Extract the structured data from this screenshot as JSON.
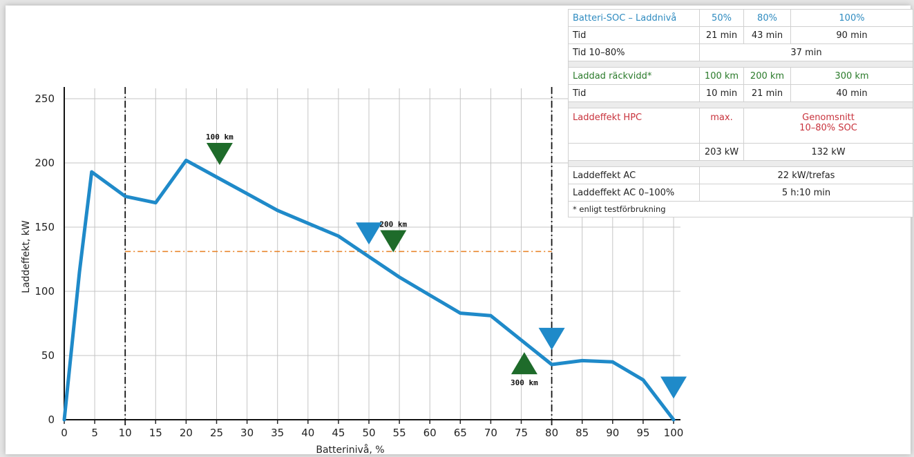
{
  "chart_data": {
    "type": "line",
    "xlabel": "Batterinivå, %",
    "ylabel": "Laddeffekt, kW",
    "xlim": [
      0,
      100
    ],
    "ylim": [
      0,
      250
    ],
    "x_ticks": [
      0,
      5,
      10,
      15,
      20,
      25,
      30,
      35,
      40,
      45,
      50,
      55,
      60,
      65,
      70,
      75,
      80,
      85,
      90,
      95,
      100
    ],
    "y_ticks": [
      0,
      50,
      100,
      150,
      200,
      250
    ],
    "grid": true,
    "series": [
      {
        "color": "#1f8ac9",
        "x": [
          0,
          2.5,
          4.5,
          10,
          15,
          20,
          25,
          30,
          35,
          40,
          45,
          50,
          55,
          60,
          65,
          70,
          75,
          80,
          85,
          90,
          95,
          100
        ],
        "y": [
          0,
          115,
          193,
          174,
          169,
          202,
          189,
          176,
          163,
          153,
          143,
          127,
          111,
          97,
          83,
          81,
          62,
          43,
          46,
          45,
          31,
          0
        ]
      }
    ],
    "reference_lines": [
      {
        "type": "vertical",
        "x": 10,
        "style": "dash-dot",
        "color": "#111111"
      },
      {
        "type": "vertical",
        "x": 80,
        "style": "dash-dot",
        "color": "#111111"
      },
      {
        "type": "horizontal",
        "y": 131,
        "x_range": [
          10,
          80
        ],
        "style": "dash-dot",
        "color": "#e8852c"
      }
    ],
    "markers": [
      {
        "x": 50,
        "y": 145,
        "direction": "down",
        "color": "#1f8ac9",
        "label": ""
      },
      {
        "x": 80,
        "y": 63,
        "direction": "down",
        "color": "#1f8ac9",
        "label": ""
      },
      {
        "x": 100,
        "y": 25,
        "direction": "down",
        "color": "#1f8ac9",
        "label": ""
      },
      {
        "x": 25.5,
        "y": 207,
        "direction": "down",
        "color": "#1e6b2a",
        "label": "100 km",
        "label_pos": "above"
      },
      {
        "x": 54,
        "y": 139,
        "direction": "down",
        "color": "#1e6b2a",
        "label": "200 km",
        "label_pos": "above"
      },
      {
        "x": 75.5,
        "y": 44,
        "direction": "up",
        "color": "#1e6b2a",
        "label": "300 km",
        "label_pos": "below"
      }
    ]
  },
  "table": {
    "soc_header": {
      "label": "Batteri-SOC – Laddnivå",
      "c1": "50%",
      "c2": "80%",
      "c3": "100%"
    },
    "soc_time": {
      "label": "Tid",
      "c1": "21 min",
      "c2": "43 min",
      "c3": "90 min"
    },
    "soc_time_10_80": {
      "label": "Tid 10–80%",
      "value": "37 min"
    },
    "range_header": {
      "label": "Laddad räckvidd*",
      "c1": "100 km",
      "c2": "200 km",
      "c3": "300 km"
    },
    "range_time": {
      "label": "Tid",
      "c1": "10 min",
      "c2": "21 min",
      "c3": "40 min"
    },
    "hpc_header": {
      "label": "Laddeffekt HPC",
      "c1": "max.",
      "c23_line1": "Genomsnitt",
      "c23_line2": "10–80% SOC"
    },
    "hpc_values": {
      "c1": "203 kW",
      "c23": "132 kW"
    },
    "ac": {
      "label": "Laddeffekt AC",
      "value": "22 kW/trefas"
    },
    "ac_full": {
      "label": "Laddeffekt AC 0–100%",
      "value": "5 h:10 min"
    },
    "footnote": "* enligt testförbrukning"
  },
  "colors": {
    "blue": "#2e8bc0",
    "green": "#2a7a2a",
    "red": "#c8323c"
  }
}
